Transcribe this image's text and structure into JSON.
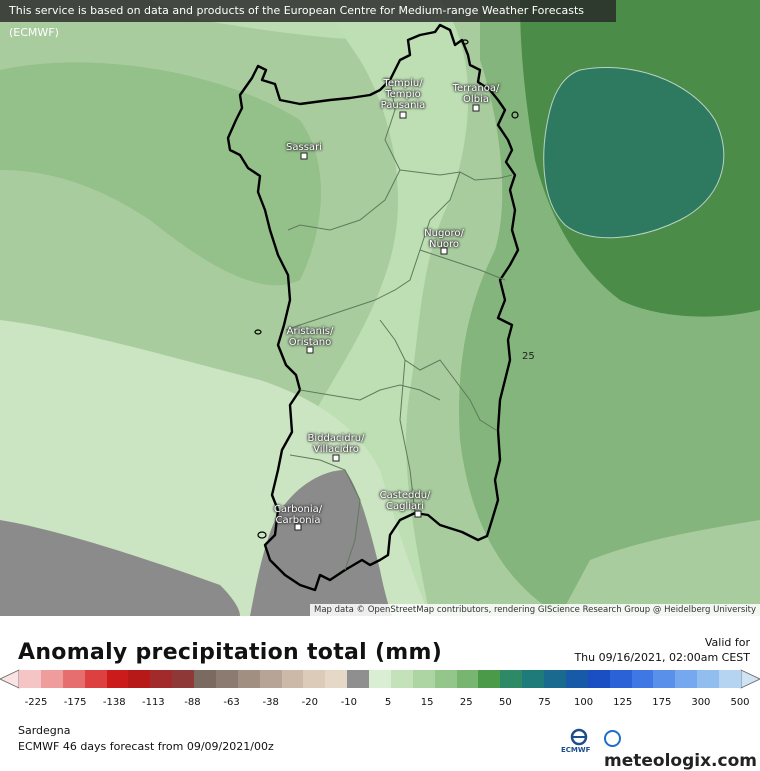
{
  "header": {
    "banner": "This service is based on data and products of the European Centre for Medium-range Weather Forecasts (ECMWF)"
  },
  "map": {
    "attribution": "Map data © OpenStreetMap contributors, rendering GIScience Research Group @ Heidelberg University",
    "contour_label": "25",
    "cities": [
      {
        "name": "Tempiu/ Tempio Pausania",
        "lines": [
          "Tempiu/",
          "Tempio",
          "Pausania"
        ]
      },
      {
        "name": "Terranoa/ Olbia",
        "lines": [
          "Terranoa/",
          "Olbia"
        ]
      },
      {
        "name": "Sassari",
        "lines": [
          "Sassari"
        ]
      },
      {
        "name": "Nugoro/ Nuoro",
        "lines": [
          "Nugoro/",
          "Nuoro"
        ]
      },
      {
        "name": "Aristanis/ Oristano",
        "lines": [
          "Aristanis/",
          "Oristano"
        ]
      },
      {
        "name": "Biddacidru/ Villacidro",
        "lines": [
          "Biddacidru/",
          "Villacidro"
        ]
      },
      {
        "name": "Casteddu/ Cagliari",
        "lines": [
          "Casteddu/",
          "Cagliari"
        ]
      },
      {
        "name": "Carbonia/ Carbonia",
        "lines": [
          "Carbonia/",
          "Carbonia"
        ]
      }
    ],
    "colors": {
      "dark_gray": "#8b8b8b",
      "light_green": "#cbe5c2",
      "mid_green": "#a9cc9f",
      "green": "#84b57c",
      "dark_green": "#4a8c48",
      "teal": "#2e7a60"
    }
  },
  "footer": {
    "title": "Anomaly precipitation total (mm)",
    "valid_label": "Valid for",
    "valid_date": "Thu 09/16/2021, 02:00am CEST",
    "region": "Sardegna",
    "forecast": "ECMWF 46 days forecast from  09/09/2021/00z",
    "ecmwf": "ECMWF",
    "brand": "meteologix.com"
  },
  "legend": {
    "labels": [
      "-225",
      "-175",
      "-138",
      "-113",
      "-88",
      "-63",
      "-38",
      "-20",
      "-10",
      "5",
      "15",
      "25",
      "50",
      "75",
      "100",
      "125",
      "175",
      "300",
      "500"
    ],
    "colors": [
      "#f5c4c4",
      "#ee9c9c",
      "#e66e6e",
      "#dc4040",
      "#cc1b1b",
      "#b71818",
      "#a32a2a",
      "#8e3838",
      "#7b6a5f",
      "#8c7b70",
      "#a18f82",
      "#b8a496",
      "#ccb9a8",
      "#dccbb8",
      "#e6d8c6",
      "#8f8f8f",
      "#d9eed2",
      "#c4e2ba",
      "#add5a4",
      "#94c68c",
      "#78b571",
      "#4a9a4a",
      "#2e8a66",
      "#1f7a7a",
      "#1a6a90",
      "#175aa8",
      "#1a4fc4",
      "#2b62d8",
      "#3f78e4",
      "#5890ea",
      "#75a8ee",
      "#92beef",
      "#b4d4f2"
    ]
  }
}
